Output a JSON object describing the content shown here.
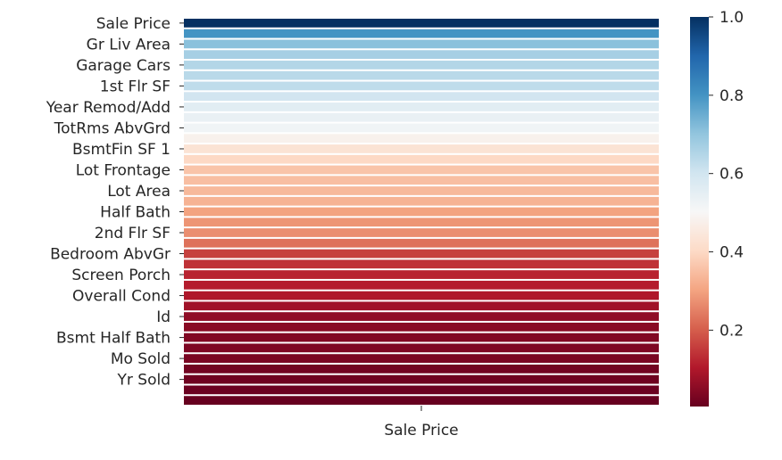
{
  "chart_data": {
    "type": "heatmap",
    "title": "",
    "xlabel": "",
    "ylabel": "",
    "x_categories": [
      "Sale Price"
    ],
    "rows": [
      {
        "label": "Sale Price",
        "value": 1.0
      },
      {
        "label": "",
        "value": 0.8
      },
      {
        "label": "Gr Liv Area",
        "value": 0.71
      },
      {
        "label": "",
        "value": 0.67
      },
      {
        "label": "Garage Cars",
        "value": 0.65
      },
      {
        "label": "",
        "value": 0.64
      },
      {
        "label": "1st Flr SF",
        "value": 0.63
      },
      {
        "label": "",
        "value": 0.6
      },
      {
        "label": "Year Remod/Add",
        "value": 0.56
      },
      {
        "label": "",
        "value": 0.54
      },
      {
        "label": "TotRms AbvGrd",
        "value": 0.52
      },
      {
        "label": "",
        "value": 0.48
      },
      {
        "label": "BsmtFin SF 1",
        "value": 0.43
      },
      {
        "label": "",
        "value": 0.4
      },
      {
        "label": "Lot Frontage",
        "value": 0.36
      },
      {
        "label": "",
        "value": 0.35
      },
      {
        "label": "Lot Area",
        "value": 0.34
      },
      {
        "label": "",
        "value": 0.33
      },
      {
        "label": "Half Bath",
        "value": 0.3
      },
      {
        "label": "",
        "value": 0.28
      },
      {
        "label": "2nd Flr SF",
        "value": 0.27
      },
      {
        "label": "",
        "value": 0.23
      },
      {
        "label": "Bedroom AbvGr",
        "value": 0.16
      },
      {
        "label": "",
        "value": 0.14
      },
      {
        "label": "Screen Porch",
        "value": 0.12
      },
      {
        "label": "",
        "value": 0.11
      },
      {
        "label": "Overall Cond",
        "value": 0.1
      },
      {
        "label": "",
        "value": 0.08
      },
      {
        "label": "Id",
        "value": 0.06
      },
      {
        "label": "",
        "value": 0.05
      },
      {
        "label": "Bsmt Half Bath",
        "value": 0.04
      },
      {
        "label": "",
        "value": 0.035
      },
      {
        "label": "Mo Sold",
        "value": 0.03
      },
      {
        "label": "",
        "value": 0.02
      },
      {
        "label": "Yr Sold",
        "value": 0.015
      },
      {
        "label": "",
        "value": 0.01
      },
      {
        "label": "",
        "value": 0.005
      }
    ],
    "colorbar": {
      "min": 0.005,
      "max": 1.0,
      "ticks": [
        1.0,
        0.8,
        0.6,
        0.4,
        0.2
      ],
      "tick_labels": [
        "1.0",
        "0.8",
        "0.6",
        "0.4",
        "0.2"
      ],
      "colormap": "RdBu"
    },
    "colormap_stops": [
      "#67001f",
      "#b2182b",
      "#d6604d",
      "#f4a582",
      "#fddbc7",
      "#f7f7f7",
      "#d1e5f0",
      "#92c5de",
      "#4393c3",
      "#2166ac",
      "#053061"
    ]
  }
}
